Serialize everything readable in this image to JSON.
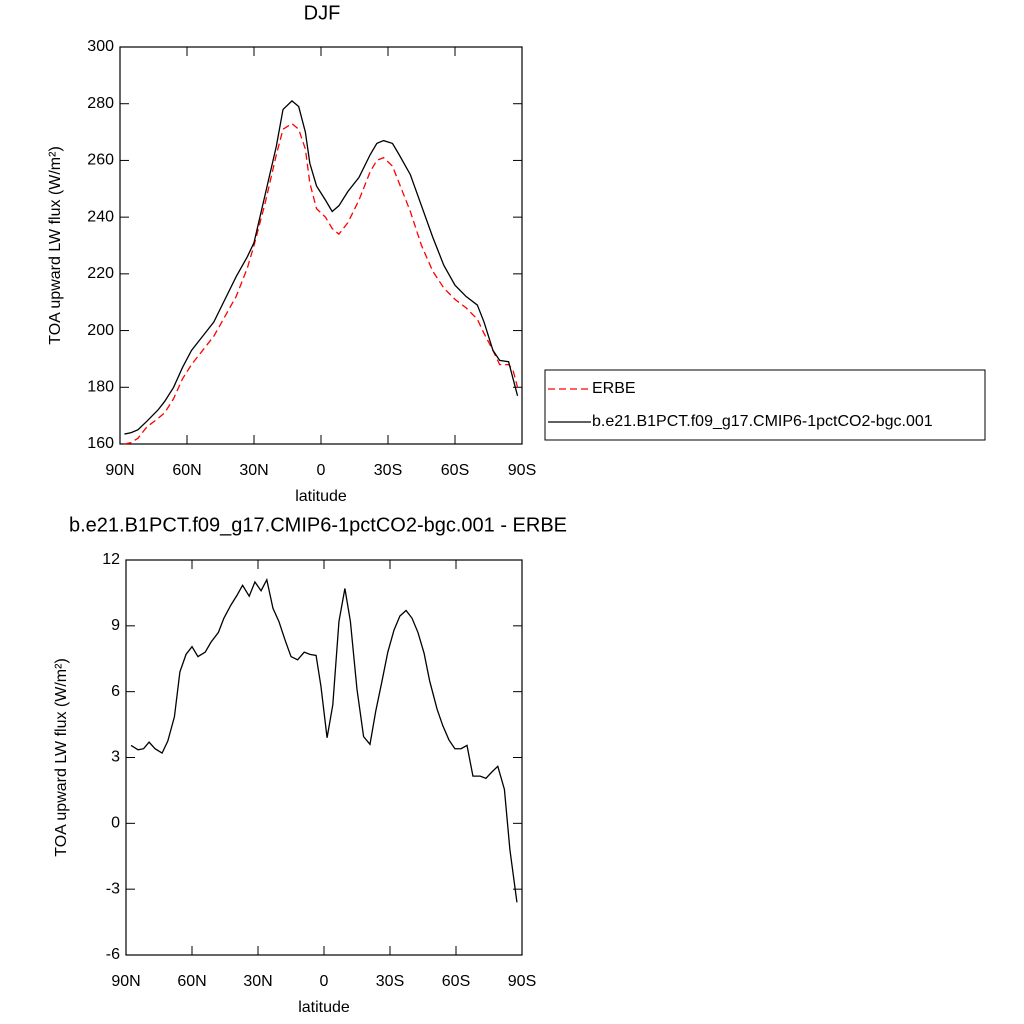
{
  "chart_data": [
    {
      "type": "line",
      "title": "DJF",
      "xlabel": "latitude",
      "ylabel": "TOA upward LW flux (W/m²)",
      "x": [
        88,
        85,
        82,
        78,
        73,
        70,
        66,
        62,
        58,
        53,
        48,
        43,
        38,
        33,
        30,
        25,
        20,
        17,
        13,
        10,
        7,
        5,
        2,
        -2,
        -5,
        -8,
        -12,
        -17,
        -22,
        -25,
        -28,
        -32,
        -35,
        -40,
        -45,
        -50,
        -55,
        -60,
        -65,
        -70,
        -73,
        -77,
        -80,
        -84,
        -86,
        -88
      ],
      "series": [
        {
          "name": "ERBE",
          "color": "#ff0000",
          "linestyle": "dashed",
          "values": [
            160,
            160.5,
            162,
            166,
            169,
            171,
            176,
            183,
            188,
            193,
            198,
            205,
            212,
            222,
            230,
            245,
            262,
            271,
            273,
            271,
            264,
            252,
            243,
            240,
            236,
            234,
            238,
            246,
            256,
            260,
            261,
            258,
            252,
            242,
            230,
            221,
            215,
            211,
            208,
            204,
            199,
            193,
            188,
            188,
            186,
            180
          ]
        },
        {
          "name": "b.e21.B1PCT.f09_g17.CMIP6-1pctCO2-bgc.001",
          "color": "#000000",
          "linestyle": "solid",
          "values": [
            163.5,
            164,
            165,
            168,
            172,
            175,
            180,
            187,
            193,
            198,
            203,
            211,
            219,
            226,
            231,
            248,
            265,
            278,
            281,
            279,
            270,
            259,
            251,
            246,
            242,
            244,
            249,
            254,
            262,
            266,
            267,
            266,
            262,
            255,
            244,
            233,
            223,
            216,
            212,
            209,
            203,
            193,
            189.5,
            189,
            183,
            177
          ]
        }
      ],
      "xlim": [
        90,
        -90
      ],
      "xticks": [
        {
          "value": 90,
          "label": "90N"
        },
        {
          "value": 60,
          "label": "60N"
        },
        {
          "value": 30,
          "label": "30N"
        },
        0,
        {
          "value": -30,
          "label": "30S"
        },
        {
          "value": -60,
          "label": "60S"
        },
        {
          "value": -90,
          "label": "90S"
        }
      ],
      "ylim": [
        160,
        300
      ],
      "yticks": [
        160,
        180,
        200,
        220,
        240,
        260,
        280,
        300
      ],
      "legend": "right"
    },
    {
      "type": "line",
      "title": "b.e21.B1PCT.f09_g17.CMIP6-1pctCO2-bgc.001 - ERBE",
      "xlabel": "latitude",
      "ylabel": "TOA upward LW flux (W/m²)",
      "color": "#000000",
      "x": [
        87.7,
        84.5,
        82,
        79.5,
        76.8,
        73.6,
        71,
        68,
        65.5,
        62.7,
        60,
        57.3,
        54,
        51.4,
        48,
        45.5,
        42.3,
        39.5,
        37,
        34,
        31.4,
        28.6,
        26,
        23.2,
        20.5,
        17.7,
        15,
        12,
        9,
        6.4,
        3.6,
        1.4,
        -1.4,
        -4,
        -6.8,
        -9.5,
        -12,
        -15,
        -18,
        -20.9,
        -23.5,
        -26.4,
        -29,
        -31.8,
        -34.5,
        -37.3,
        -40,
        -42.7,
        -45.5,
        -48,
        -51.4,
        -54,
        -56.8,
        -59.5,
        -62.3,
        -65,
        -67.7,
        -71,
        -73.6,
        -76.4,
        -79,
        -82,
        -84.5,
        -87.7
      ],
      "values": [
        3.55,
        3.35,
        3.4,
        3.7,
        3.4,
        3.2,
        3.75,
        4.85,
        6.9,
        7.7,
        8.05,
        7.6,
        7.8,
        8.25,
        8.7,
        9.35,
        9.95,
        10.4,
        10.85,
        10.35,
        11.0,
        10.6,
        11.1,
        9.8,
        9.2,
        8.35,
        7.6,
        7.45,
        7.8,
        7.7,
        7.65,
        6.25,
        3.9,
        5.4,
        9.2,
        10.7,
        9.2,
        6.1,
        3.95,
        3.6,
        5.1,
        6.5,
        7.8,
        8.8,
        9.45,
        9.7,
        9.35,
        8.7,
        7.75,
        6.5,
        5.2,
        4.45,
        3.8,
        3.4,
        3.4,
        3.55,
        2.15,
        2.15,
        2.05,
        2.35,
        2.6,
        1.55,
        -1.2,
        -3.6
      ],
      "xlim": [
        90,
        -90
      ],
      "xticks": [
        {
          "value": 90,
          "label": "90N"
        },
        {
          "value": 60,
          "label": "60N"
        },
        {
          "value": 30,
          "label": "30N"
        },
        0,
        {
          "value": -30,
          "label": "30S"
        },
        {
          "value": -60,
          "label": "60S"
        },
        {
          "value": -90,
          "label": "90S"
        }
      ],
      "ylim": [
        -6,
        12
      ],
      "yticks": [
        -6,
        -3,
        0,
        3,
        6,
        9,
        12
      ]
    }
  ]
}
